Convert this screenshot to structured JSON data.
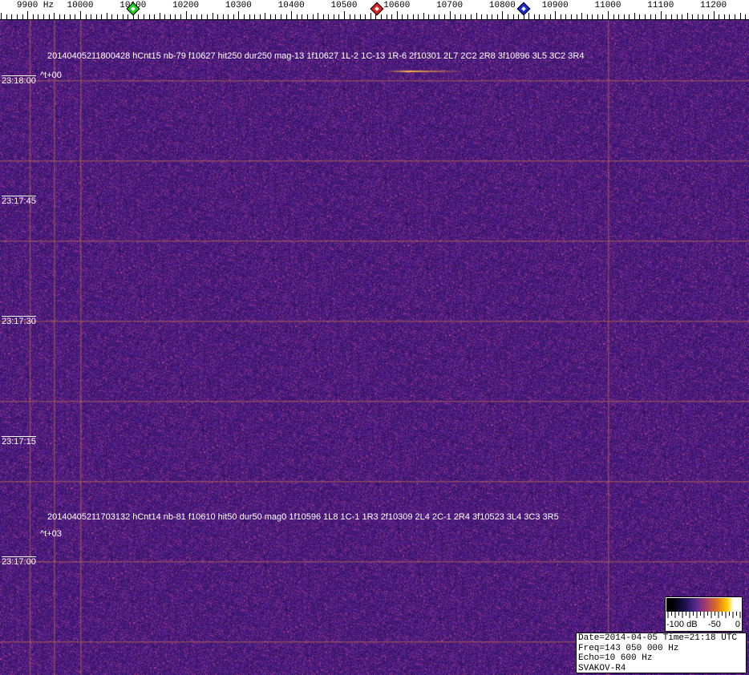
{
  "ruler": {
    "unit_label": "9900 Hz",
    "labels": [
      "10000",
      "10100",
      "10200",
      "10300",
      "10400",
      "10500",
      "10600",
      "10700",
      "10800",
      "10900",
      "11000",
      "11100",
      "11200"
    ],
    "markers": [
      {
        "name": "green-marker",
        "freq_hz": 10100,
        "color": "#22cc22"
      },
      {
        "name": "red-marker",
        "freq_hz": 10562,
        "color": "#dd2222"
      },
      {
        "name": "blue-marker",
        "freq_hz": 10840,
        "color": "#1a2acc"
      }
    ]
  },
  "events": [
    {
      "text": "20140405211800428 hCnt15 nb-79 f10627 hit250 dur250 mag-13 1f10627 1L-2 1C-13 1R-6 2f10301 2L7 2C2 2R8 3f10896 3L5 3C2 3R4",
      "offset": "^t+00"
    },
    {
      "text": "20140405211703132 hCnt14 nb-81 f10610 hit50 dur50 mag0 1f10596 1L8 1C-1 1R3 2f10309 2L4 2C-1 2R4 3f10523 3L4 3C3 3R5",
      "offset": "^t+03"
    }
  ],
  "time_labels": [
    "23:18:00",
    "23:17:45",
    "23:17:30",
    "23:17:15",
    "23:17:00"
  ],
  "legend": {
    "min": "-100 dB",
    "mid": "-50",
    "max": "0"
  },
  "info": {
    "date_time": "Date=2014-04-05 Time=21:18 UTC",
    "freq": "Freq=143 050 000 Hz",
    "echo": "Echo=10 600 Hz",
    "station": "SVAKOV-R4"
  },
  "colors": {
    "background": "#3a1f80",
    "line": "#c06a50"
  }
}
